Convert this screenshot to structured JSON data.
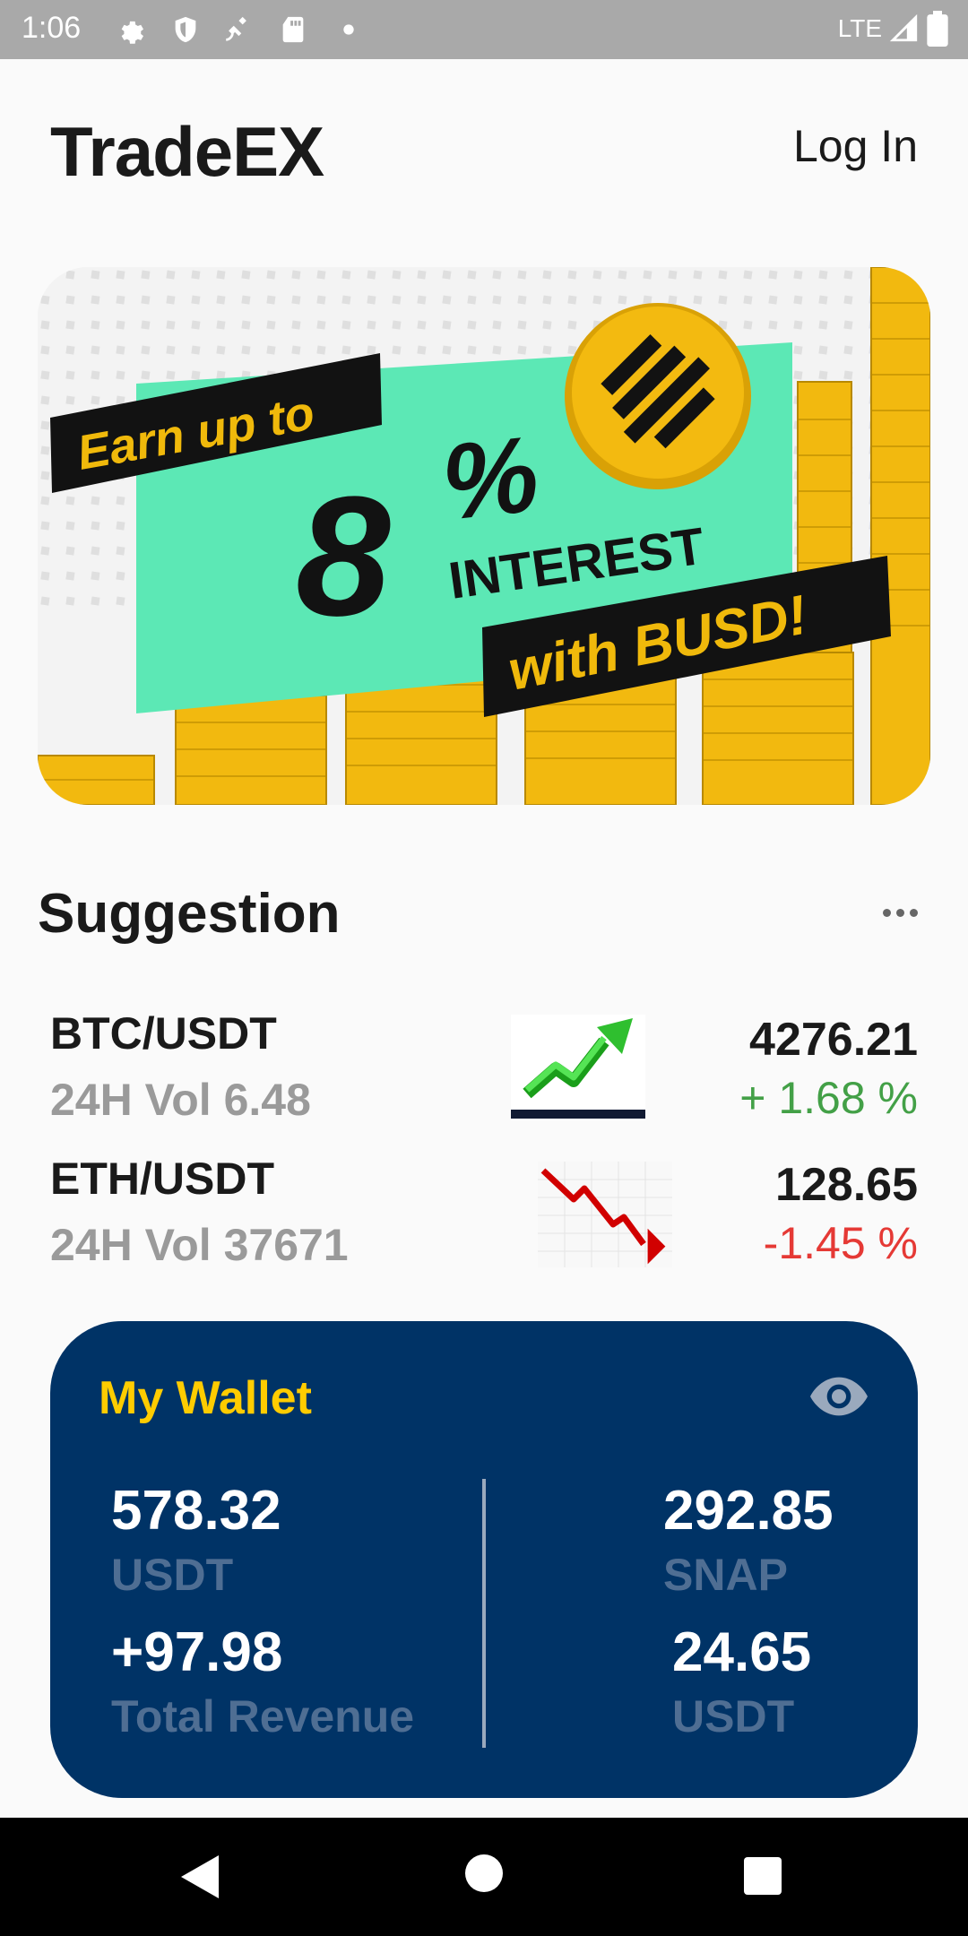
{
  "status_bar": {
    "time": "1:06",
    "network": "LTE",
    "icons": [
      "gear-icon",
      "shield-icon",
      "satellite-icon",
      "sd-card-icon",
      "dot-icon",
      "signal-icon",
      "battery-icon"
    ]
  },
  "header": {
    "title": "TradeEX",
    "login_label": "Log In"
  },
  "banner": {
    "line1": "Earn up to",
    "big_number": "8",
    "percent": "%",
    "interest": "INTEREST",
    "line3": "with BUSD!",
    "colors": {
      "mint": "#5ce8b5",
      "gold": "#f0b90b",
      "black": "#121212"
    }
  },
  "suggestion": {
    "title": "Suggestion",
    "more_icon": "more-horizontal-icon",
    "pairs": [
      {
        "name": "BTC/USDT",
        "volume": "24H Vol 6.48",
        "price": "4276.21",
        "change": "+ 1.68 %",
        "trend": "up"
      },
      {
        "name": "ETH/USDT",
        "volume": "24H Vol 37671",
        "price": "128.65",
        "change": "-1.45 %",
        "trend": "down"
      }
    ]
  },
  "wallet": {
    "title": "My Wallet",
    "eye_icon": "eye-icon",
    "left": [
      {
        "value": "578.32",
        "label": "USDT"
      },
      {
        "value": "+97.98",
        "label": "Total Revenue"
      }
    ],
    "right": [
      {
        "value": "292.85",
        "label": "SNAP"
      },
      {
        "value": "24.65",
        "label": "USDT"
      }
    ],
    "colors": {
      "background": "#003366",
      "title": "#ffcc00"
    }
  },
  "nav_bar": {
    "buttons": [
      "back-icon",
      "home-icon",
      "recents-icon"
    ]
  }
}
